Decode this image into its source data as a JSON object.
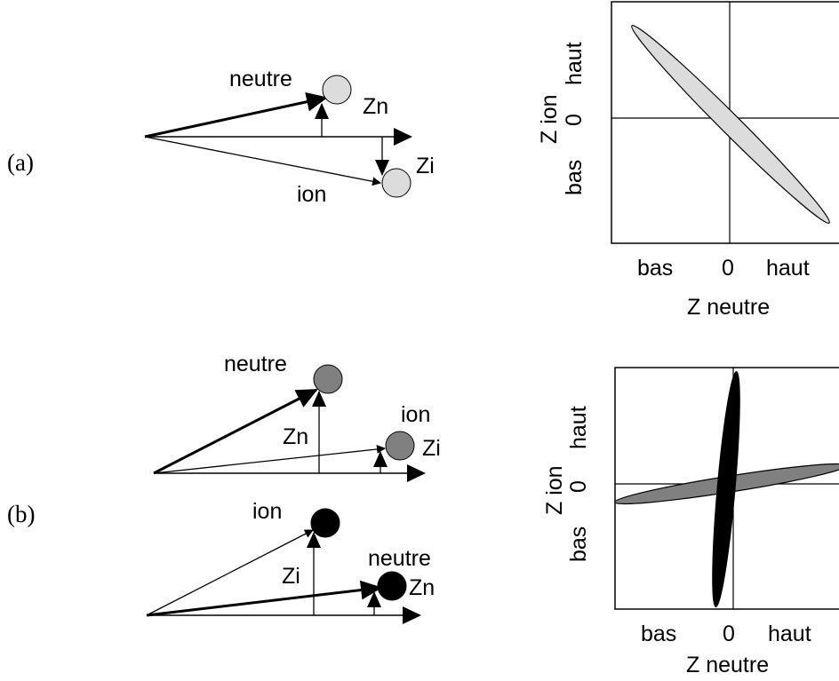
{
  "panel_a": {
    "label": "(a)",
    "vectors": {
      "neutre": "neutre",
      "ion": "ion",
      "zn": "Zn",
      "zi": "Zi"
    },
    "plot": {
      "ylabel": "Z ion",
      "xlabel": "Z neutre",
      "x_ticks": [
        "bas",
        "0",
        "haut"
      ],
      "y_ticks": [
        "bas",
        "0",
        "haut"
      ]
    }
  },
  "panel_b": {
    "label": "(b)",
    "top_vectors": {
      "neutre": "neutre",
      "ion": "ion",
      "zn": "Zn",
      "zi": "Zi"
    },
    "bottom_vectors": {
      "ion": "ion",
      "neutre": "neutre",
      "zi": "Zi",
      "zn": "Zn"
    },
    "plot": {
      "ylabel": "Z ion",
      "xlabel": "Z neutre",
      "x_ticks": [
        "bas",
        "0",
        "haut"
      ],
      "y_ticks": [
        "bas",
        "0",
        "haut"
      ]
    }
  },
  "colors": {
    "light": "#dcdcdc",
    "gray": "#808080",
    "black": "#000000"
  }
}
